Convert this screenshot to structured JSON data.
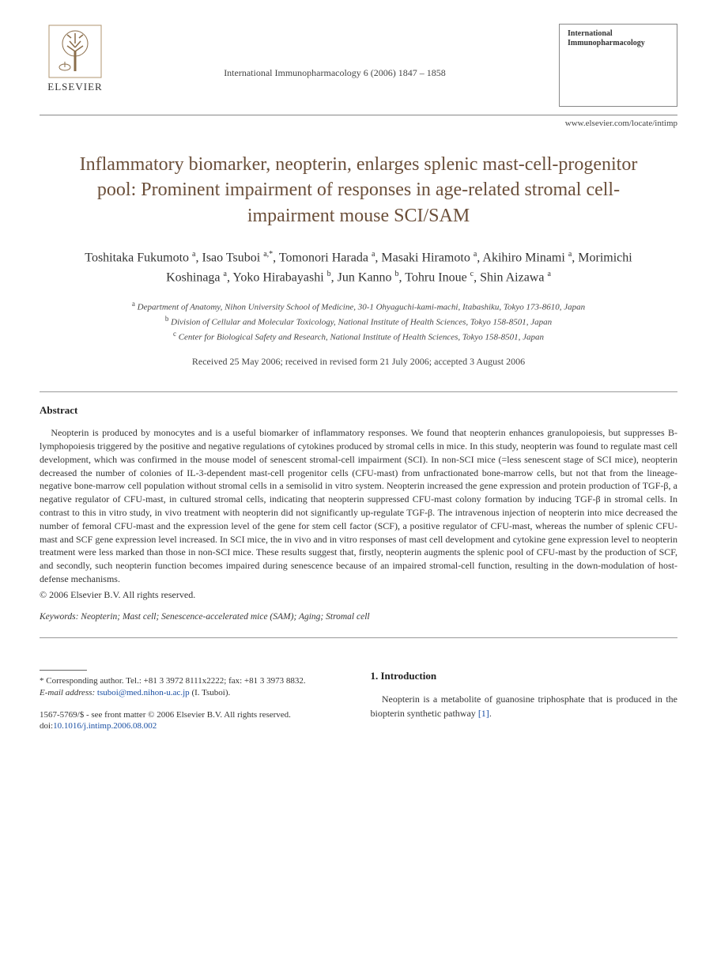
{
  "header": {
    "publisher": "ELSEVIER",
    "journal_ref": "International Immunopharmacology 6 (2006) 1847 – 1858",
    "journal_box_title": "International Immunopharmacology",
    "locate": "www.elsevier.com/locate/intimp"
  },
  "article": {
    "title": "Inflammatory biomarker, neopterin, enlarges splenic mast-cell-progenitor pool: Prominent impairment of responses in age-related stromal cell-impairment mouse SCI/SAM",
    "authors_html": "Toshitaka Fukumoto <sup>a</sup>, Isao Tsuboi <sup>a,*</sup>, Tomonori Harada <sup>a</sup>, Masaki Hiramoto <sup>a</sup>, Akihiro Minami <sup>a</sup>, Morimichi Koshinaga <sup>a</sup>, Yoko Hirabayashi <sup>b</sup>, Jun Kanno <sup>b</sup>, Tohru Inoue <sup>c</sup>, Shin Aizawa <sup>a</sup>",
    "affiliations": {
      "a": "Department of Anatomy, Nihon University School of Medicine, 30-1 Ohyaguchi-kami-machi, Itabashiku, Tokyo 173-8610, Japan",
      "b": "Division of Cellular and Molecular Toxicology, National Institute of Health Sciences, Tokyo 158-8501, Japan",
      "c": "Center for Biological Safety and Research, National Institute of Health Sciences, Tokyo 158-8501, Japan"
    },
    "dates": "Received 25 May 2006; received in revised form 21 July 2006; accepted 3 August 2006"
  },
  "abstract": {
    "heading": "Abstract",
    "text": "Neopterin is produced by monocytes and is a useful biomarker of inflammatory responses. We found that neopterin enhances granulopoiesis, but suppresses B-lymphopoiesis triggered by the positive and negative regulations of cytokines produced by stromal cells in mice. In this study, neopterin was found to regulate mast cell development, which was confirmed in the mouse model of senescent stromal-cell impairment (SCI). In non-SCI mice (=less senescent stage of SCI mice), neopterin decreased the number of colonies of IL-3-dependent mast-cell progenitor cells (CFU-mast) from unfractionated bone-marrow cells, but not that from the lineage-negative bone-marrow cell population without stromal cells in a semisolid in vitro system. Neopterin increased the gene expression and protein production of TGF-β, a negative regulator of CFU-mast, in cultured stromal cells, indicating that neopterin suppressed CFU-mast colony formation by inducing TGF-β in stromal cells. In contrast to this in vitro study, in vivo treatment with neopterin did not significantly up-regulate TGF-β. The intravenous injection of neopterin into mice decreased the number of femoral CFU-mast and the expression level of the gene for stem cell factor (SCF), a positive regulator of CFU-mast, whereas the number of splenic CFU-mast and SCF gene expression level increased. In SCI mice, the in vivo and in vitro responses of mast cell development and cytokine gene expression level to neopterin treatment were less marked than those in non-SCI mice. These results suggest that, firstly, neopterin augments the splenic pool of CFU-mast by the production of SCF, and secondly, such neopterin function becomes impaired during senescence because of an impaired stromal-cell function, resulting in the down-modulation of host-defense mechanisms.",
    "copyright": "© 2006 Elsevier B.V. All rights reserved."
  },
  "keywords": {
    "label": "Keywords:",
    "text": "Neopterin; Mast cell; Senescence-accelerated mice (SAM); Aging; Stromal cell"
  },
  "footnote": {
    "corr": "* Corresponding author. Tel.: +81 3 3972 8111x2222; fax: +81 3 3973 8832.",
    "email_label": "E-mail address:",
    "email": "tsuboi@med.nihon-u.ac.jp",
    "email_name": "(I. Tsuboi)."
  },
  "footer": {
    "issn": "1567-5769/$ - see front matter © 2006 Elsevier B.V. All rights reserved.",
    "doi_label": "doi:",
    "doi": "10.1016/j.intimp.2006.08.002"
  },
  "intro": {
    "heading": "1. Introduction",
    "text_part1": "Neopterin is a metabolite of guanosine triphosphate that is produced in the biopterin synthetic pathway ",
    "ref": "[1]",
    "text_part2": "."
  },
  "colors": {
    "title": "#6b4f3a",
    "text": "#333333",
    "link": "#1a4fa3",
    "rule": "#888888",
    "bg": "#ffffff"
  }
}
